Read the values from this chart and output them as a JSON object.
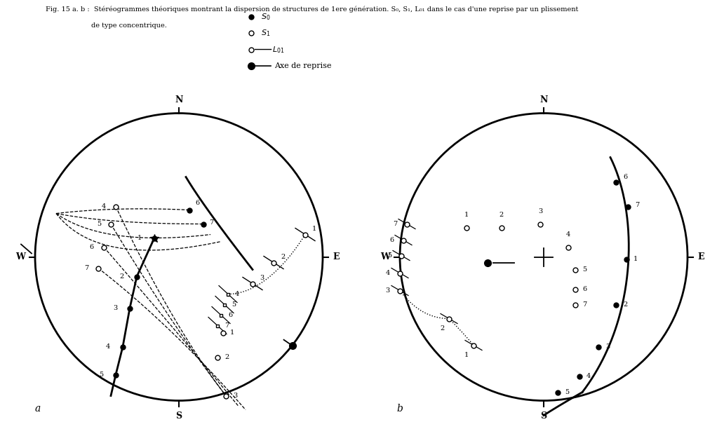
{
  "title_line1": "Fig. 15 a. b :  Stéréogrammes théoriques montrant la dispersion de structures de 1ere génération. S₀, S₁, L₀₁ dans le cas d'une reprise par un plissement",
  "title_line2": "de type concentrique.",
  "label_a": "a",
  "label_b": "b",
  "bg_color": "#ffffff"
}
